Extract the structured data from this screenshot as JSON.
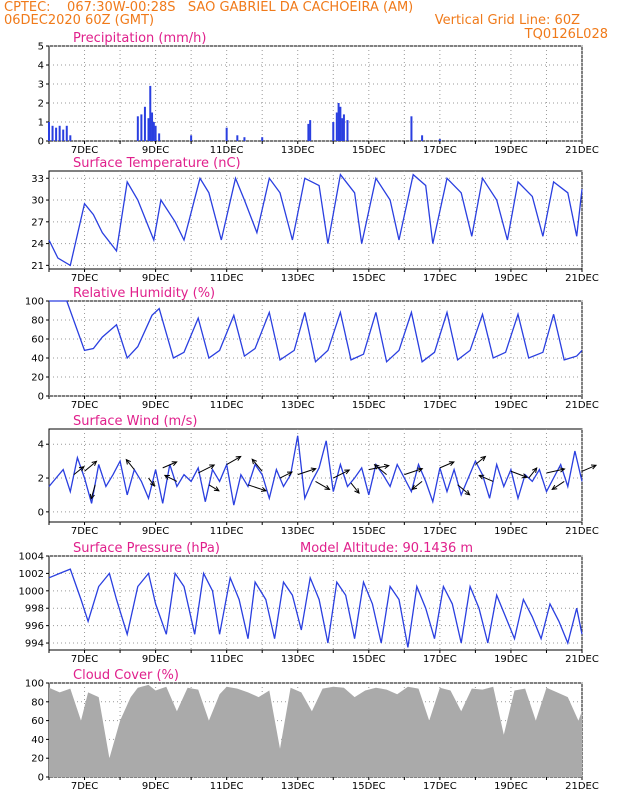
{
  "header": {
    "line1": "CPTEC:    067:30W-00:28S   SAO GABRIEL DA CACHOEIRA (AM)",
    "line2_left": "06DEC2020 60Z (GMT)",
    "line2_right": "Vertical Grid Line: 60Z",
    "line3_right": "TQ0126L028"
  },
  "colors": {
    "header": "#f07a1a",
    "title": "#e0208c",
    "series": "#2a3fe0",
    "cloud": "#aaaaaa",
    "wind_arrow": "#000000"
  },
  "chart_data": [
    {
      "type": "bar",
      "title": "Precipitation (mm/h)",
      "x_tick_labels": [
        "7DEC",
        "9DEC",
        "11DEC",
        "13DEC",
        "15DEC",
        "17DEC",
        "19DEC",
        "21DEC"
      ],
      "x_range_days": [
        6.0,
        21.0
      ],
      "ylim": [
        0,
        5
      ],
      "y_ticks": [
        0,
        1,
        2,
        3,
        4,
        5
      ],
      "grid": true,
      "x": [
        6.0,
        6.1,
        6.2,
        6.3,
        6.4,
        6.5,
        6.6,
        8.5,
        8.6,
        8.7,
        8.8,
        8.85,
        8.9,
        8.95,
        9.0,
        9.1,
        10.0,
        11.0,
        11.3,
        11.5,
        12.0,
        13.3,
        13.35,
        14.0,
        14.1,
        14.15,
        14.2,
        14.25,
        14.3,
        14.4,
        16.2,
        16.5,
        17.0
      ],
      "values": [
        1.0,
        0.8,
        0.7,
        0.8,
        0.6,
        0.8,
        0.3,
        1.3,
        1.4,
        1.8,
        1.2,
        2.9,
        1.5,
        1.0,
        0.8,
        0.4,
        0.3,
        0.7,
        0.3,
        0.2,
        0.2,
        0.9,
        1.1,
        1.0,
        1.5,
        2.0,
        1.8,
        1.2,
        1.4,
        1.1,
        1.3,
        0.3,
        0.1
      ]
    },
    {
      "type": "line",
      "title": "Surface Temperature (nC)",
      "x_tick_labels": [
        "7DEC",
        "9DEC",
        "11DEC",
        "13DEC",
        "15DEC",
        "17DEC",
        "19DEC",
        "21DEC"
      ],
      "x_range_days": [
        6.0,
        21.0
      ],
      "ylim": [
        20.5,
        34.0
      ],
      "y_ticks": [
        21,
        24,
        27,
        30,
        33
      ],
      "grid": true,
      "series": [
        {
          "x": [
            6.0,
            6.25,
            6.6,
            7.0,
            7.25,
            7.5,
            7.9,
            8.2,
            8.5,
            8.95,
            9.15,
            9.55,
            9.8,
            10.25,
            10.5,
            10.85,
            11.25,
            11.5,
            11.85,
            12.2,
            12.5,
            12.85,
            13.2,
            13.6,
            13.85,
            14.2,
            14.6,
            14.8,
            15.2,
            15.6,
            15.85,
            16.25,
            16.6,
            16.8,
            17.2,
            17.6,
            17.9,
            18.2,
            18.6,
            18.9,
            19.2,
            19.6,
            19.9,
            20.2,
            20.6,
            20.85,
            21.0
          ],
          "y": [
            24.5,
            22.0,
            21.0,
            29.5,
            28.0,
            25.5,
            23.0,
            32.5,
            30.0,
            24.5,
            30.0,
            27.0,
            24.5,
            33.0,
            31.0,
            24.5,
            33.0,
            30.0,
            25.5,
            33.0,
            31.0,
            24.5,
            33.0,
            32.0,
            24.0,
            33.5,
            31.0,
            24.0,
            33.0,
            30.0,
            24.5,
            33.5,
            32.0,
            24.0,
            33.0,
            31.0,
            25.0,
            33.0,
            30.0,
            24.5,
            32.5,
            30.5,
            25.0,
            32.5,
            31.0,
            25.0,
            31.5
          ]
        }
      ]
    },
    {
      "type": "line",
      "title": "Relative Humidity (%)",
      "x_tick_labels": [
        "7DEC",
        "9DEC",
        "11DEC",
        "13DEC",
        "15DEC",
        "17DEC",
        "19DEC",
        "21DEC"
      ],
      "x_range_days": [
        6.0,
        21.0
      ],
      "ylim": [
        0,
        100
      ],
      "y_ticks": [
        0,
        20,
        40,
        60,
        80,
        100
      ],
      "grid": true,
      "series": [
        {
          "x": [
            6.0,
            6.5,
            7.0,
            7.25,
            7.5,
            7.9,
            8.2,
            8.5,
            8.9,
            9.1,
            9.5,
            9.8,
            10.2,
            10.5,
            10.8,
            11.2,
            11.5,
            11.8,
            12.2,
            12.5,
            12.9,
            13.2,
            13.5,
            13.85,
            14.2,
            14.5,
            14.85,
            15.2,
            15.5,
            15.85,
            16.2,
            16.5,
            16.85,
            17.2,
            17.5,
            17.85,
            18.2,
            18.5,
            18.85,
            19.2,
            19.5,
            19.9,
            20.2,
            20.5,
            20.85,
            21.0
          ],
          "y": [
            100,
            100,
            48,
            50,
            62,
            75,
            40,
            52,
            85,
            92,
            40,
            46,
            82,
            40,
            48,
            85,
            42,
            50,
            88,
            38,
            48,
            88,
            36,
            48,
            88,
            38,
            44,
            88,
            36,
            48,
            88,
            36,
            46,
            88,
            38,
            48,
            86,
            40,
            46,
            86,
            40,
            46,
            86,
            38,
            42,
            48
          ]
        }
      ]
    },
    {
      "type": "line",
      "title": "Surface Wind (m/s)",
      "x_tick_labels": [
        "7DEC",
        "9DEC",
        "11DEC",
        "13DEC",
        "15DEC",
        "17DEC",
        "19DEC",
        "21DEC"
      ],
      "x_range_days": [
        6.0,
        21.0
      ],
      "ylim": [
        -0.6,
        4.9
      ],
      "y_ticks": [
        0,
        2,
        4
      ],
      "grid": true,
      "series": [
        {
          "x": [
            6.0,
            6.2,
            6.4,
            6.6,
            6.8,
            7.0,
            7.2,
            7.4,
            7.6,
            7.8,
            8.0,
            8.2,
            8.4,
            8.6,
            8.8,
            9.0,
            9.2,
            9.4,
            9.6,
            9.8,
            10.0,
            10.2,
            10.4,
            10.6,
            10.8,
            11.0,
            11.2,
            11.4,
            11.6,
            11.8,
            12.0,
            12.2,
            12.4,
            12.6,
            12.8,
            13.0,
            13.2,
            13.4,
            13.6,
            13.8,
            14.0,
            14.2,
            14.4,
            14.6,
            14.8,
            15.0,
            15.2,
            15.4,
            15.6,
            15.8,
            16.0,
            16.2,
            16.4,
            16.6,
            16.8,
            17.0,
            17.2,
            17.4,
            17.6,
            17.8,
            18.0,
            18.2,
            18.4,
            18.6,
            18.8,
            19.0,
            19.2,
            19.4,
            19.6,
            19.8,
            20.0,
            20.2,
            20.4,
            20.6,
            20.8,
            21.0
          ],
          "y": [
            1.5,
            2.0,
            2.5,
            1.2,
            3.2,
            2.0,
            0.5,
            2.8,
            1.5,
            2.2,
            3.0,
            1.0,
            2.5,
            1.8,
            0.8,
            2.5,
            0.5,
            2.8,
            1.5,
            2.2,
            1.8,
            2.6,
            0.6,
            2.5,
            1.8,
            2.8,
            0.4,
            2.2,
            1.5,
            2.8,
            2.2,
            0.8,
            2.5,
            1.5,
            2.2,
            4.5,
            0.8,
            1.8,
            2.6,
            4.2,
            1.2,
            2.8,
            1.5,
            2.0,
            2.6,
            1.0,
            2.8,
            2.2,
            1.5,
            2.8,
            2.0,
            1.2,
            2.8,
            1.8,
            0.6,
            2.6,
            1.2,
            2.5,
            1.0,
            2.0,
            3.0,
            2.2,
            0.8,
            2.8,
            1.5,
            2.5,
            0.8,
            2.2,
            1.8,
            2.5,
            1.2,
            2.0,
            2.8,
            1.5,
            3.6,
            1.8
          ]
        }
      ],
      "wind_arrows": {
        "x": [
          6.7,
          7.0,
          7.3,
          8.4,
          8.8,
          9.2,
          9.6,
          10.2,
          10.5,
          11.0,
          11.6,
          12.0,
          12.5,
          13.0,
          13.5,
          14.0,
          14.5,
          15.0,
          15.5,
          16.0,
          16.5,
          17.0,
          17.5,
          18.0,
          18.5,
          19.0,
          19.5,
          20.0,
          20.5,
          21.0
        ],
        "y": [
          2.2,
          2.4,
          1.6,
          2.5,
          2.0,
          2.6,
          1.8,
          2.3,
          1.6,
          2.8,
          1.6,
          2.4,
          2.0,
          2.2,
          1.8,
          2.0,
          1.7,
          2.5,
          2.2,
          2.2,
          1.8,
          2.6,
          1.6,
          2.8,
          1.8,
          2.4,
          2.0,
          2.3,
          1.8,
          2.4
        ],
        "u": [
          0.5,
          0.6,
          -0.2,
          -0.4,
          0.3,
          0.7,
          -0.6,
          0.8,
          0.5,
          0.7,
          0.9,
          -0.5,
          0.6,
          0.9,
          0.7,
          0.8,
          0.4,
          1.0,
          -0.6,
          0.9,
          -0.5,
          0.7,
          0.6,
          0.5,
          -0.7,
          0.8,
          0.4,
          0.9,
          -0.6,
          0.7
        ],
        "v": [
          0.4,
          0.5,
          -0.7,
          0.5,
          -0.4,
          0.3,
          0.3,
          0.4,
          -0.3,
          0.4,
          -0.3,
          0.6,
          0.3,
          0.3,
          -0.4,
          0.4,
          -0.5,
          0.2,
          0.5,
          0.3,
          -0.4,
          0.3,
          -0.5,
          0.4,
          0.3,
          -0.3,
          0.5,
          0.2,
          -0.4,
          0.3
        ]
      }
    },
    {
      "type": "line",
      "title": "Surface Pressure (hPa)",
      "annotation": "Model Altitude: 90.1436 m",
      "x_tick_labels": [
        "7DEC",
        "9DEC",
        "11DEC",
        "13DEC",
        "15DEC",
        "17DEC",
        "19DEC",
        "21DEC"
      ],
      "x_range_days": [
        6.0,
        21.0
      ],
      "ylim": [
        993.2,
        1004.0
      ],
      "y_ticks": [
        994,
        996,
        998,
        1000,
        1002,
        1004
      ],
      "grid": true,
      "series": [
        {
          "x": [
            6.0,
            6.3,
            6.6,
            6.9,
            7.1,
            7.4,
            7.7,
            7.9,
            8.2,
            8.5,
            8.8,
            9.0,
            9.3,
            9.55,
            9.8,
            10.1,
            10.35,
            10.6,
            10.8,
            11.1,
            11.35,
            11.6,
            11.8,
            12.1,
            12.35,
            12.6,
            12.85,
            13.1,
            13.35,
            13.6,
            13.85,
            14.1,
            14.35,
            14.6,
            14.85,
            15.1,
            15.35,
            15.6,
            15.85,
            16.1,
            16.35,
            16.6,
            16.85,
            17.1,
            17.35,
            17.6,
            17.85,
            18.1,
            18.35,
            18.6,
            18.85,
            19.1,
            19.35,
            19.6,
            19.85,
            20.1,
            20.35,
            20.6,
            20.85,
            21.0
          ],
          "y": [
            1001.5,
            1002.0,
            1002.5,
            999.0,
            996.5,
            1000.5,
            1002.0,
            999.0,
            995.0,
            1000.5,
            1002.0,
            998.5,
            995.0,
            1002.0,
            1000.5,
            995.0,
            1002.0,
            1000.0,
            995.0,
            1001.5,
            999.0,
            994.5,
            1001.0,
            999.0,
            994.5,
            1001.0,
            999.5,
            995.5,
            1001.5,
            999.0,
            994.0,
            1001.0,
            999.5,
            994.5,
            1001.0,
            998.5,
            994.0,
            1000.5,
            999.0,
            993.5,
            1000.5,
            998.0,
            994.5,
            1000.5,
            998.5,
            994.0,
            1000.5,
            998.0,
            994.0,
            999.5,
            997.0,
            994.5,
            999.0,
            997.0,
            994.5,
            998.5,
            996.5,
            994.0,
            998.0,
            995.0
          ]
        }
      ]
    },
    {
      "type": "area",
      "title": "Cloud Cover (%)",
      "x_tick_labels": [
        "7DEC",
        "9DEC",
        "11DEC",
        "13DEC",
        "15DEC",
        "17DEC",
        "19DEC",
        "21DEC"
      ],
      "x_range_days": [
        6.0,
        21.0
      ],
      "ylim": [
        0,
        100
      ],
      "y_ticks": [
        0,
        20,
        40,
        60,
        80,
        100
      ],
      "grid": true,
      "series": [
        {
          "x": [
            6.0,
            6.3,
            6.6,
            6.9,
            7.1,
            7.4,
            7.7,
            8.0,
            8.3,
            8.5,
            8.8,
            9.0,
            9.3,
            9.6,
            9.9,
            10.2,
            10.5,
            10.8,
            11.0,
            11.3,
            11.6,
            11.9,
            12.2,
            12.5,
            12.8,
            13.1,
            13.4,
            13.7,
            14.0,
            14.3,
            14.6,
            14.9,
            15.2,
            15.5,
            15.8,
            16.1,
            16.4,
            16.7,
            17.0,
            17.3,
            17.6,
            17.9,
            18.2,
            18.5,
            18.8,
            19.1,
            19.4,
            19.7,
            20.0,
            20.3,
            20.6,
            20.9,
            21.0
          ],
          "y": [
            95,
            90,
            94,
            60,
            90,
            85,
            20,
            60,
            85,
            95,
            98,
            92,
            96,
            70,
            95,
            93,
            60,
            88,
            96,
            94,
            90,
            85,
            92,
            30,
            95,
            90,
            70,
            94,
            96,
            95,
            85,
            92,
            95,
            93,
            88,
            96,
            94,
            60,
            95,
            92,
            70,
            94,
            93,
            96,
            45,
            92,
            94,
            60,
            95,
            90,
            85,
            60,
            70
          ]
        }
      ]
    }
  ]
}
